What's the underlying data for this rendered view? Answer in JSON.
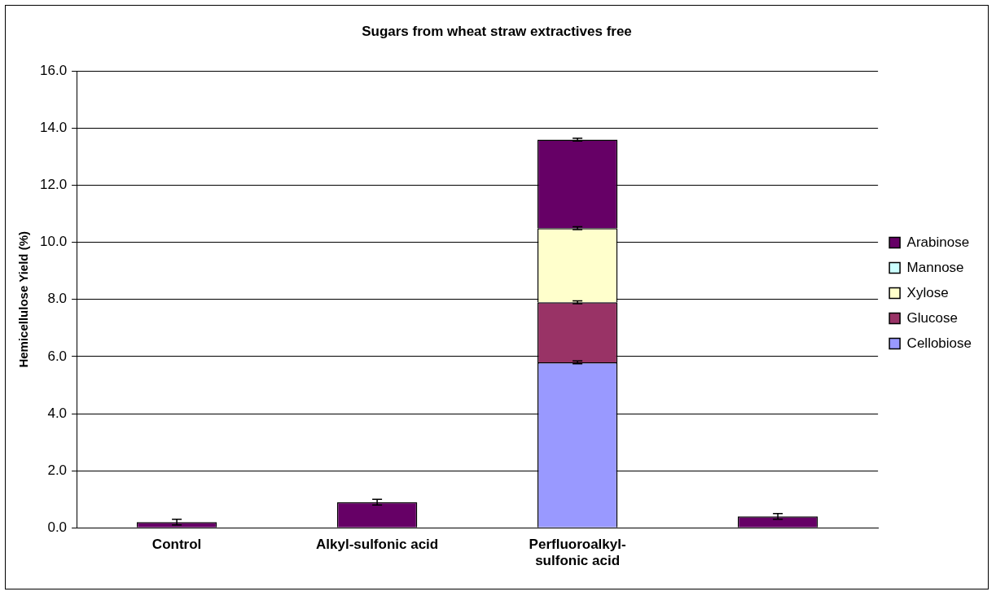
{
  "chart_data": {
    "type": "bar",
    "title": "Sugars from wheat straw extractives free",
    "ylabel": "Hemicellulose Yield (%)",
    "categories": [
      "Control",
      "Alkyl-sulfonic acid",
      "Perfluoroalkyl-sulfonic acid",
      null
    ],
    "stacked": true,
    "series": [
      {
        "name": "Cellobiose",
        "color": "#9999ff",
        "values": [
          0,
          0,
          5.8,
          0
        ],
        "errors": [
          null,
          null,
          0.05,
          null
        ]
      },
      {
        "name": "Glucose",
        "color": "#993366",
        "values": [
          0,
          0,
          2.1,
          0
        ],
        "errors": [
          null,
          null,
          0.05,
          null
        ]
      },
      {
        "name": "Xylose",
        "color": "#ffffcc",
        "values": [
          0,
          0,
          2.6,
          0
        ],
        "errors": [
          null,
          null,
          0.05,
          null
        ]
      },
      {
        "name": "Mannose",
        "color": "#ccffff",
        "values": [
          0,
          0,
          0,
          0
        ]
      },
      {
        "name": "Arabinose",
        "color": "#660066",
        "values": [
          0.2,
          0.9,
          3.1,
          0.4
        ],
        "errors": [
          0.1,
          0.1,
          0.05,
          0.1
        ]
      }
    ],
    "ylim": [
      0,
      16
    ],
    "yticks": [
      {
        "value": 0,
        "label": "0.0"
      },
      {
        "value": 2,
        "label": "2.0"
      },
      {
        "value": 4,
        "label": "4.0"
      },
      {
        "value": 6,
        "label": "6.0"
      },
      {
        "value": 8,
        "label": "8.0"
      },
      {
        "value": 10,
        "label": "10.0"
      },
      {
        "value": 12,
        "label": "12.0"
      },
      {
        "value": 14,
        "label": "14.0"
      },
      {
        "value": 16,
        "label": "16.0"
      }
    ],
    "grid": "y",
    "legend": "right"
  }
}
